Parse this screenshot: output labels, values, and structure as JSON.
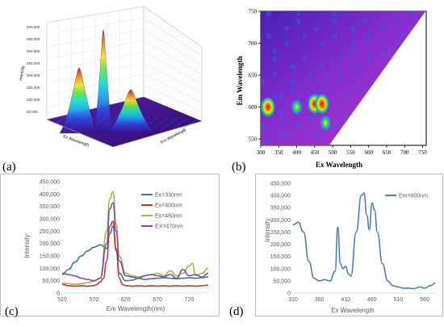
{
  "panels": {
    "a": {
      "label": "(a)"
    },
    "b": {
      "label": "(b)"
    },
    "c": {
      "label": "(c)"
    },
    "d": {
      "label": "(d)"
    }
  },
  "chart_data": [
    {
      "panel": "a",
      "type": "surface3d",
      "zlabel": "Intensity",
      "xlabel": "Ex Wavelength",
      "ylabel": "Em Wavelength",
      "z_ticks": [
        "400,000",
        "350,000",
        "300,000",
        "250,000",
        "200,000",
        "150,000",
        "100,000",
        "50,000"
      ],
      "peaks": [
        {
          "ex": 330,
          "em": 350,
          "z": 240000
        },
        {
          "ex": 400,
          "em": 420,
          "z": 380000
        },
        {
          "ex": 450,
          "em": 470,
          "z": 160000
        }
      ],
      "colormap": [
        "#3b0f8a",
        "#2f3fd6",
        "#1ea0f0",
        "#1de0c8",
        "#5fe44a",
        "#f0e62a",
        "#f08a1e",
        "#d41818"
      ]
    },
    {
      "panel": "b",
      "type": "heatmap",
      "xlabel": "Ex Wavelength",
      "ylabel": "Em Wavelength",
      "x_ticks": [
        300,
        350,
        400,
        450,
        500,
        550,
        600,
        650,
        700,
        750
      ],
      "y_ticks": [
        750,
        700,
        650,
        600,
        550
      ],
      "xlim": [
        300,
        760
      ],
      "ylim": [
        540,
        750
      ],
      "hotspots": [
        {
          "ex": 320,
          "em": 600,
          "level": "high"
        },
        {
          "ex": 400,
          "em": 600,
          "level": "medium"
        },
        {
          "ex": 450,
          "em": 605,
          "level": "high"
        },
        {
          "ex": 470,
          "em": 605,
          "level": "high"
        },
        {
          "ex": 480,
          "em": 575,
          "level": "medium"
        }
      ]
    },
    {
      "panel": "c",
      "type": "line",
      "xlabel": "Em Wavelength(nm)",
      "ylabel": "Intensity",
      "xlim": [
        520,
        750
      ],
      "ylim": [
        0,
        450000
      ],
      "x_ticks": [
        520,
        570,
        620,
        670,
        720
      ],
      "y_ticks": [
        {
          "v": 0,
          "t": "0"
        },
        {
          "v": 50000,
          "t": "50,000"
        },
        {
          "v": 100000,
          "t": "100,000"
        },
        {
          "v": 150000,
          "t": "150,000"
        },
        {
          "v": 200000,
          "t": "200,000"
        },
        {
          "v": 250000,
          "t": "250,000"
        },
        {
          "v": 300000,
          "t": "300,000"
        },
        {
          "v": 350000,
          "t": "350,000"
        },
        {
          "v": 400000,
          "t": "400,000"
        },
        {
          "v": 450000,
          "t": "450,000"
        }
      ],
      "legend": "right",
      "series": [
        {
          "name": "Ex=330nm",
          "color": "#3d6fb6",
          "x": [
            520,
            530,
            540,
            550,
            560,
            570,
            580,
            590,
            595,
            600,
            605,
            610,
            620,
            630,
            640,
            650,
            660,
            670,
            680,
            690,
            700,
            710,
            720,
            730,
            740,
            750
          ],
          "y": [
            75000,
            95000,
            125000,
            150000,
            170000,
            185000,
            195000,
            180000,
            240000,
            270000,
            170000,
            80000,
            50000,
            52000,
            60000,
            55000,
            58000,
            60000,
            62000,
            60000,
            58000,
            60000,
            62000,
            60000,
            62000,
            65000
          ]
        },
        {
          "name": "Ex=400nm",
          "color": "#c0392b",
          "x": [
            520,
            530,
            540,
            550,
            560,
            570,
            575,
            580,
            585,
            590,
            595,
            600,
            605,
            610,
            615,
            620,
            630,
            640,
            650,
            660,
            670,
            680,
            690,
            700,
            710,
            720,
            730,
            740,
            750
          ],
          "y": [
            35000,
            30000,
            28000,
            30000,
            28000,
            30000,
            35000,
            45000,
            60000,
            130000,
            270000,
            290000,
            180000,
            60000,
            35000,
            30000,
            28000,
            30000,
            28000,
            30000,
            28000,
            30000,
            28000,
            30000,
            28000,
            30000,
            28000,
            30000,
            32000
          ]
        },
        {
          "name": "Ex=450nm",
          "color": "#9bbb3c",
          "x": [
            520,
            530,
            540,
            550,
            560,
            570,
            580,
            590,
            595,
            600,
            605,
            610,
            620,
            630,
            640,
            650,
            660,
            670,
            680,
            690,
            700,
            710,
            720,
            725,
            730,
            740,
            750
          ],
          "y": [
            40000,
            38000,
            35000,
            38000,
            42000,
            48000,
            60000,
            250000,
            380000,
            410000,
            280000,
            150000,
            80000,
            70000,
            65000,
            70000,
            75000,
            80000,
            70000,
            90000,
            70000,
            80000,
            110000,
            120000,
            70000,
            80000,
            100000
          ]
        },
        {
          "name": "EX=470nm",
          "color": "#7a4ea6",
          "x": [
            520,
            530,
            540,
            550,
            560,
            570,
            580,
            590,
            595,
            600,
            605,
            610,
            620,
            630,
            640,
            650,
            660,
            670,
            680,
            690,
            700,
            710,
            720,
            730,
            740,
            750
          ],
          "y": [
            80000,
            75000,
            70000,
            60000,
            55000,
            50000,
            60000,
            200000,
            340000,
            365000,
            250000,
            130000,
            70000,
            65000,
            60000,
            70000,
            75000,
            70000,
            65000,
            75000,
            60000,
            95000,
            70000,
            75000,
            65000,
            80000
          ]
        }
      ]
    },
    {
      "panel": "d",
      "type": "line",
      "xlabel": "Ex Wavelength",
      "ylabel": "Intensity",
      "xlim": [
        310,
        580
      ],
      "ylim": [
        0,
        450000
      ],
      "x_ticks": [
        310,
        360,
        410,
        460,
        510,
        560
      ],
      "y_ticks": [
        {
          "v": 0,
          "t": "0"
        },
        {
          "v": 50000,
          "t": "50,000"
        },
        {
          "v": 100000,
          "t": "100,000"
        },
        {
          "v": 150000,
          "t": "150,000"
        },
        {
          "v": 200000,
          "t": "200,000"
        },
        {
          "v": 250000,
          "t": "250,000"
        },
        {
          "v": 300000,
          "t": "300,000"
        },
        {
          "v": 350000,
          "t": "350,000"
        },
        {
          "v": 400000,
          "t": "400,000"
        },
        {
          "v": 450000,
          "t": "450,000"
        }
      ],
      "legend": "top-right",
      "series": [
        {
          "name": "Em=600nm",
          "color": "#4a7fbf",
          "x": [
            310,
            320,
            330,
            340,
            350,
            360,
            370,
            380,
            390,
            395,
            400,
            405,
            410,
            415,
            420,
            430,
            440,
            445,
            450,
            455,
            460,
            465,
            470,
            480,
            490,
            500,
            510,
            520,
            530,
            540,
            550,
            560,
            570,
            580
          ],
          "y": [
            280000,
            290000,
            250000,
            130000,
            60000,
            50000,
            55000,
            50000,
            90000,
            270000,
            120000,
            100000,
            110000,
            80000,
            70000,
            250000,
            400000,
            410000,
            320000,
            260000,
            370000,
            340000,
            250000,
            120000,
            50000,
            30000,
            25000,
            20000,
            20000,
            18000,
            25000,
            20000,
            30000,
            40000
          ]
        }
      ]
    }
  ]
}
